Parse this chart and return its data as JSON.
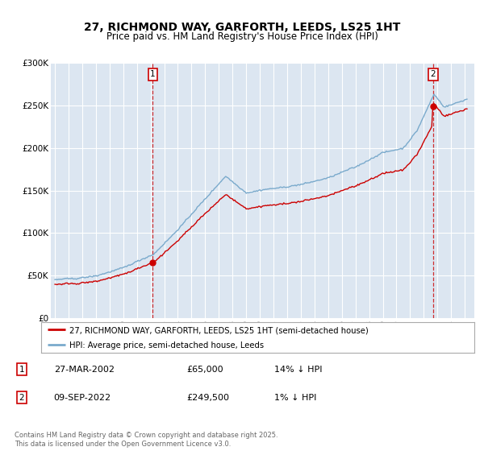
{
  "title": "27, RICHMOND WAY, GARFORTH, LEEDS, LS25 1HT",
  "subtitle": "Price paid vs. HM Land Registry's House Price Index (HPI)",
  "title_fontsize": 10,
  "subtitle_fontsize": 8.5,
  "line1_label": "27, RICHMOND WAY, GARFORTH, LEEDS, LS25 1HT (semi-detached house)",
  "line2_label": "HPI: Average price, semi-detached house, Leeds",
  "line1_color": "#cc0000",
  "line2_color": "#7aaacc",
  "marker1_price": 65000,
  "marker1_date_str": "27-MAR-2002",
  "marker1_hpi_pct": "14% ↓ HPI",
  "marker2_price": 249500,
  "marker2_date_str": "09-SEP-2022",
  "marker2_hpi_pct": "1% ↓ HPI",
  "ylim_min": 0,
  "ylim_max": 300000,
  "ytick_values": [
    0,
    50000,
    100000,
    150000,
    200000,
    250000,
    300000
  ],
  "ytick_labels": [
    "£0",
    "£50K",
    "£100K",
    "£150K",
    "£200K",
    "£250K",
    "£300K"
  ],
  "bg_color": "#dce6f1",
  "grid_color": "#ffffff",
  "footer": "Contains HM Land Registry data © Crown copyright and database right 2025.\nThis data is licensed under the Open Government Licence v3.0."
}
